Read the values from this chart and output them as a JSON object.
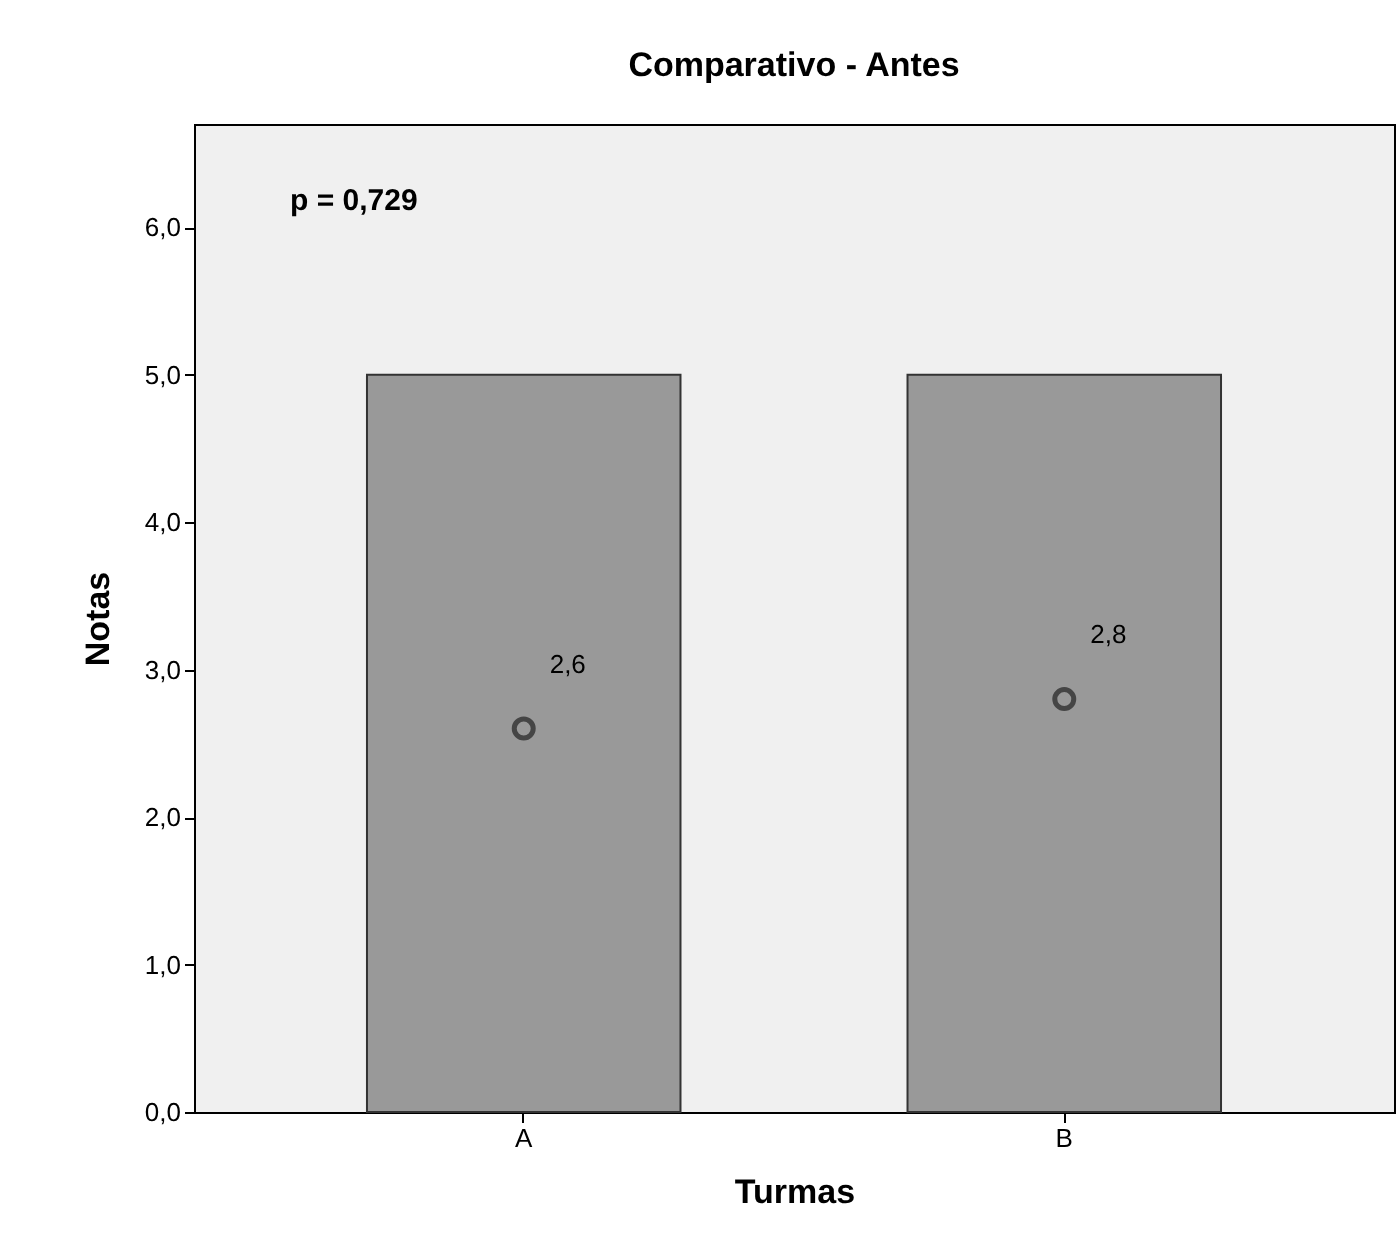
{
  "chart_data": {
    "type": "bar",
    "title": "Comparativo - Antes",
    "xlabel": "Turmas",
    "ylabel": "Notas",
    "categories": [
      "A",
      "B"
    ],
    "series": [
      {
        "color": "#999999",
        "values": [
          5.0,
          5.0
        ]
      },
      {
        "type": "scatter",
        "color": "#222222",
        "values": [
          2.6,
          2.8
        ],
        "value_labels": [
          "2,6",
          "2,8"
        ]
      }
    ],
    "ylim": [
      0,
      6.7
    ],
    "yticks": [
      {
        "value": 0,
        "label": "0,0"
      },
      {
        "value": 1,
        "label": "1,0"
      },
      {
        "value": 2,
        "label": "2,0"
      },
      {
        "value": 3,
        "label": "3,0"
      },
      {
        "value": 4,
        "label": "4,0"
      },
      {
        "value": 5,
        "label": "5,0"
      },
      {
        "value": 6,
        "label": "6,0"
      }
    ],
    "annotations": [
      "p = 0,729"
    ],
    "marker": "circle"
  }
}
